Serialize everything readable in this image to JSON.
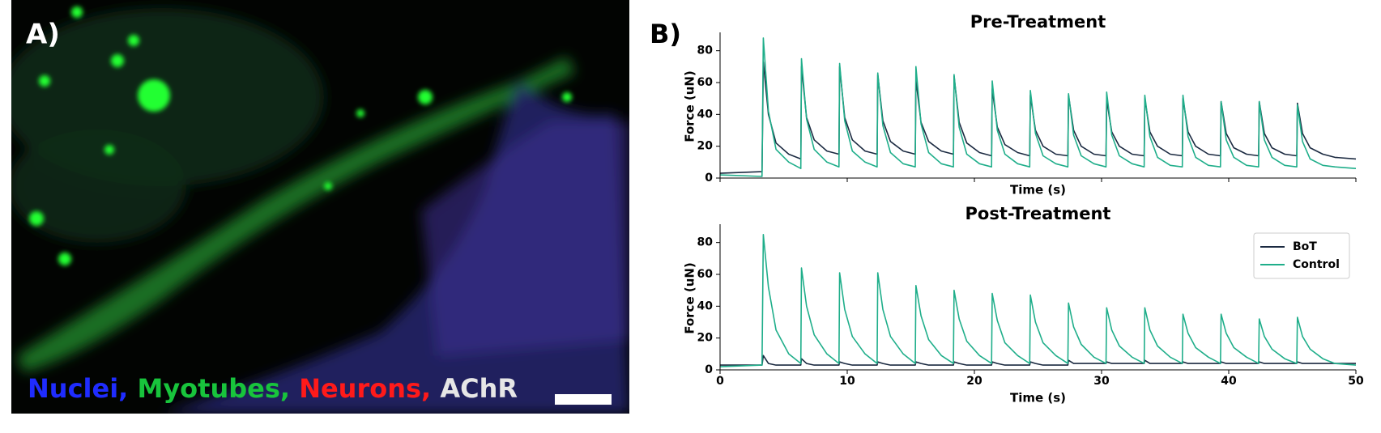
{
  "panels": {
    "a_label": "A)",
    "b_label": "B)",
    "caption": [
      {
        "text": "Nuclei,",
        "color": "#1f2cff"
      },
      {
        "text": "Myotubes,",
        "color": "#18c43c"
      },
      {
        "text": "Neurons,",
        "color": "#ff1a1a"
      },
      {
        "text": "AChR",
        "color": "#e6e6e6"
      }
    ]
  },
  "chart_data": [
    {
      "type": "line",
      "title": "Pre-Treatment",
      "xlabel": "Time (s)",
      "ylabel": "Force (uN)",
      "xlim": [
        0,
        50
      ],
      "ylim": [
        0,
        90
      ],
      "xticks": [
        0,
        10,
        20,
        30,
        40,
        50
      ],
      "xticklabels": false,
      "yticks": [
        0,
        20,
        40,
        60,
        80
      ],
      "x": [
        0,
        3.3,
        3.4,
        3.8,
        4.4,
        5.4,
        6.35,
        6.4,
        6.8,
        7.4,
        8.4,
        9.35,
        9.4,
        9.8,
        10.4,
        11.4,
        12.35,
        12.4,
        12.8,
        13.4,
        14.4,
        15.35,
        15.4,
        15.8,
        16.4,
        17.4,
        18.35,
        18.4,
        18.8,
        19.4,
        20.4,
        21.35,
        21.4,
        21.8,
        22.4,
        23.4,
        24.35,
        24.4,
        24.8,
        25.4,
        26.4,
        27.35,
        27.4,
        27.8,
        28.4,
        29.4,
        30.35,
        30.4,
        30.8,
        31.4,
        32.4,
        33.35,
        33.4,
        33.8,
        34.4,
        35.4,
        36.35,
        36.4,
        36.8,
        37.4,
        38.4,
        39.35,
        39.4,
        39.8,
        40.4,
        41.4,
        42.35,
        42.4,
        42.8,
        43.4,
        44.4,
        45.35,
        45.4,
        45.8,
        46.4,
        47.4,
        48.35,
        50
      ],
      "series": [
        {
          "name": "BoT",
          "color": "#1b2a41",
          "values": [
            3,
            4,
            73,
            40,
            22,
            15,
            12,
            70,
            38,
            24,
            17,
            15,
            70,
            38,
            24,
            17,
            15,
            65,
            36,
            23,
            17,
            15,
            62,
            35,
            23,
            17,
            15,
            64,
            35,
            22,
            16,
            14,
            56,
            32,
            21,
            16,
            14,
            52,
            30,
            20,
            15,
            14,
            52,
            30,
            20,
            15,
            14,
            49,
            29,
            20,
            15,
            14,
            50,
            29,
            20,
            15,
            14,
            50,
            29,
            20,
            15,
            14,
            48,
            28,
            19,
            15,
            14,
            48,
            28,
            19,
            15,
            14,
            47,
            28,
            19,
            15,
            13,
            12
          ]
        },
        {
          "name": "Control",
          "color": "#1fae8a",
          "values": [
            2,
            1,
            88,
            42,
            18,
            10,
            6,
            75,
            37,
            18,
            10,
            7,
            72,
            36,
            17,
            10,
            7,
            66,
            33,
            16,
            9,
            7,
            70,
            34,
            16,
            9,
            7,
            65,
            32,
            15,
            9,
            7,
            61,
            30,
            15,
            9,
            7,
            55,
            28,
            14,
            9,
            7,
            53,
            27,
            14,
            9,
            7,
            54,
            27,
            14,
            9,
            7,
            52,
            26,
            13,
            8,
            7,
            52,
            26,
            13,
            8,
            7,
            48,
            24,
            13,
            8,
            7,
            48,
            24,
            13,
            8,
            7,
            46,
            23,
            12,
            8,
            7,
            6
          ]
        }
      ]
    },
    {
      "type": "line",
      "title": "Post-Treatment",
      "xlabel": "Time (s)",
      "ylabel": "Force (uN)",
      "legend": "upper right",
      "xlim": [
        0,
        50
      ],
      "ylim": [
        0,
        90
      ],
      "xticks": [
        0,
        10,
        20,
        30,
        40,
        50
      ],
      "xticklabels": true,
      "yticks": [
        0,
        20,
        40,
        60,
        80
      ],
      "x": [
        0,
        3.3,
        3.4,
        3.8,
        4.4,
        5.4,
        6.35,
        6.4,
        6.8,
        7.4,
        8.4,
        9.35,
        9.4,
        9.8,
        10.4,
        11.4,
        12.35,
        12.4,
        12.8,
        13.4,
        14.4,
        15.35,
        15.4,
        15.8,
        16.4,
        17.4,
        18.35,
        18.4,
        18.8,
        19.4,
        20.4,
        21.35,
        21.4,
        21.8,
        22.4,
        23.4,
        24.35,
        24.4,
        24.8,
        25.4,
        26.4,
        27.35,
        27.4,
        27.8,
        28.4,
        29.4,
        30.35,
        30.4,
        30.8,
        31.4,
        32.4,
        33.35,
        33.4,
        33.8,
        34.4,
        35.4,
        36.35,
        36.4,
        36.8,
        37.4,
        38.4,
        39.35,
        39.4,
        39.8,
        40.4,
        41.4,
        42.35,
        42.4,
        42.8,
        43.4,
        44.4,
        45.35,
        45.4,
        45.8,
        46.4,
        47.4,
        48.35,
        50
      ],
      "series": [
        {
          "name": "BoT",
          "color": "#1b2a41",
          "values": [
            3,
            3,
            9,
            4,
            3,
            3,
            3,
            7,
            4,
            3,
            3,
            3,
            5,
            4,
            3,
            3,
            3,
            5,
            4,
            3,
            3,
            3,
            5,
            4,
            3,
            3,
            3,
            5,
            4,
            3,
            3,
            3,
            5,
            4,
            3,
            3,
            3,
            5,
            4,
            3,
            3,
            3,
            6,
            4,
            4,
            4,
            4,
            5,
            4,
            4,
            4,
            4,
            6,
            4,
            4,
            4,
            4,
            5,
            4,
            4,
            4,
            4,
            5,
            4,
            4,
            4,
            4,
            5,
            4,
            4,
            4,
            4,
            5,
            4,
            4,
            4,
            4,
            4
          ]
        },
        {
          "name": "Control",
          "color": "#1fae8a",
          "values": [
            2,
            3,
            85,
            52,
            25,
            10,
            4,
            64,
            40,
            22,
            10,
            4,
            61,
            38,
            21,
            10,
            4,
            61,
            38,
            21,
            10,
            4,
            53,
            34,
            19,
            9,
            4,
            50,
            32,
            18,
            9,
            4,
            48,
            31,
            17,
            9,
            4,
            47,
            30,
            17,
            9,
            4,
            42,
            27,
            16,
            8,
            4,
            39,
            25,
            15,
            8,
            4,
            39,
            25,
            15,
            8,
            4,
            35,
            23,
            14,
            8,
            4,
            35,
            23,
            14,
            8,
            4,
            32,
            21,
            13,
            7,
            4,
            33,
            21,
            13,
            7,
            4,
            3
          ]
        }
      ]
    }
  ]
}
